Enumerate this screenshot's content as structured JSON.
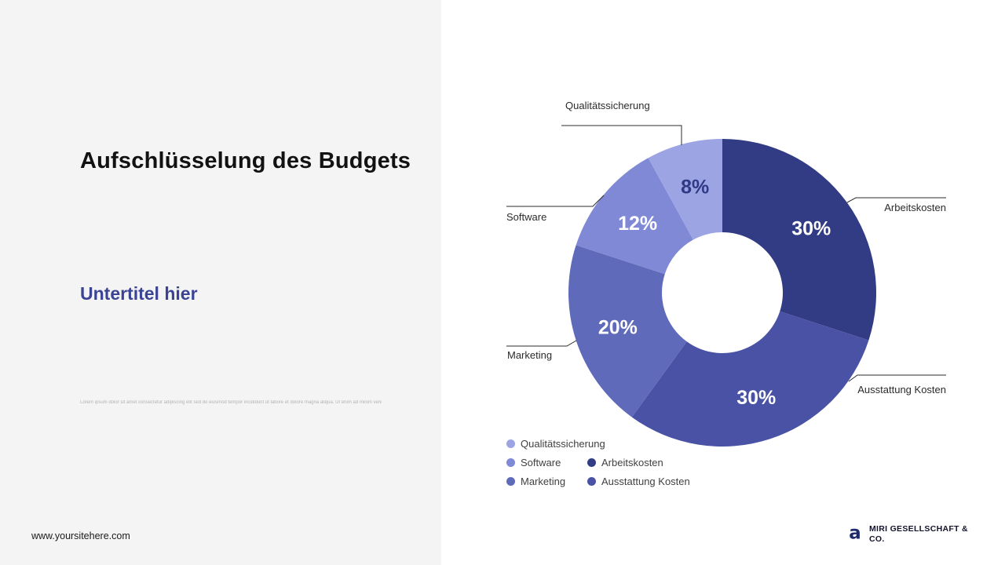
{
  "left": {
    "title": "Aufschlüsselung des Budgets",
    "subtitle": "Untertitel hier",
    "fine_print": "Lorem ipsum dolor sit amet consectetur adipiscing elit sed do eiusmod tempor incididunt ut labore et dolore magna aliqua.   Ut enim ad minim veniam quis nostrud exercitation ullamco laboris nisi ut aliquip ex ea commodo consequat duis aute irure."
  },
  "footer": {
    "website": "www.yoursitehere.com"
  },
  "brand": {
    "logo_icon": "a-monogram-icon",
    "line1": "MIRI GESELLSCHAFT &",
    "line2": "CO."
  },
  "chart_data": {
    "type": "pie",
    "variant": "donut",
    "title": "Aufschlüsselung des Budgets",
    "unit": "%",
    "direction": "clockwise",
    "start_angle_deg": 0,
    "series": [
      {
        "label": "Arbeitskosten",
        "value": 30,
        "pct_label": "30%",
        "color": "#323c85",
        "pct_color": "#ffffff"
      },
      {
        "label": "Ausstattung Kosten",
        "value": 30,
        "pct_label": "30%",
        "color": "#4952a5",
        "pct_color": "#ffffff"
      },
      {
        "label": "Marketing",
        "value": 20,
        "pct_label": "20%",
        "color": "#5f6aba",
        "pct_color": "#ffffff"
      },
      {
        "label": "Software",
        "value": 12,
        "pct_label": "12%",
        "color": "#7f89d5",
        "pct_color": "#ffffff"
      },
      {
        "label": "Qualitätssicherung",
        "value": 8,
        "pct_label": "8%",
        "color": "#9ca4e4",
        "pct_color": "#2f3985"
      }
    ],
    "legend_rows": [
      [
        "Qualitätssicherung"
      ],
      [
        "Software",
        "Arbeitskosten"
      ],
      [
        "Marketing",
        "Ausstattung Kosten"
      ]
    ],
    "legend_position": "bottom-left"
  }
}
